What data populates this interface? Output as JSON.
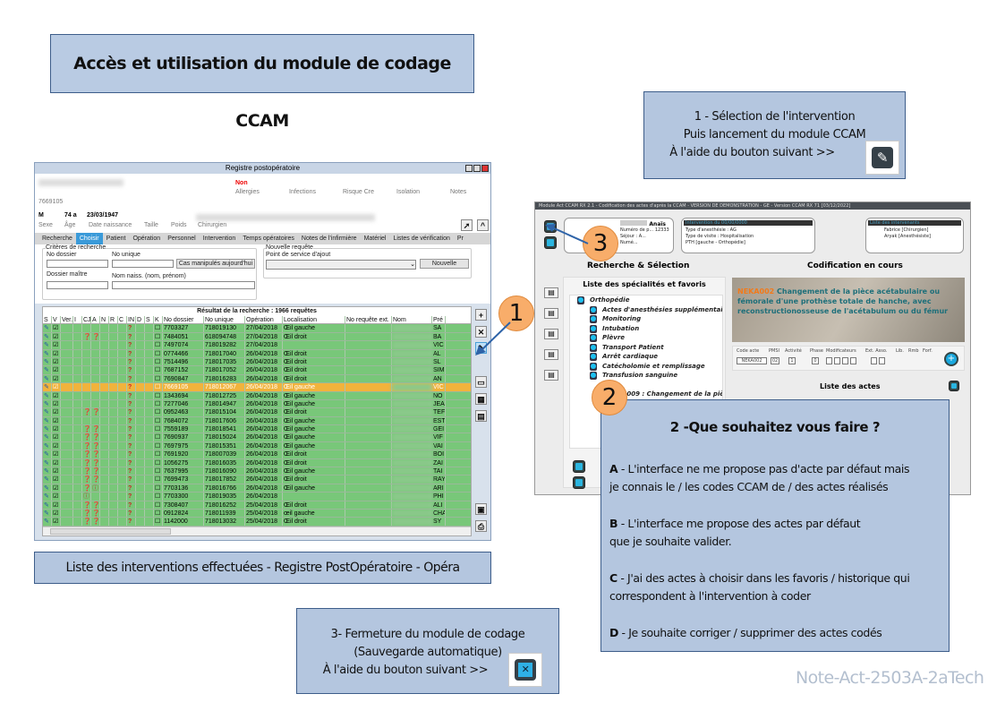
{
  "title": "Accès et utilisation du module de codage CCAM",
  "step1": {
    "lines": [
      "1 - Sélection de l'intervention",
      "Puis lancement du module CCAM",
      "À l'aide du bouton suivant >>"
    ],
    "icon": "edit-icon"
  },
  "step2": {
    "title": "2 -Que souhaitez vous faire ?",
    "options": [
      {
        "key": "A",
        "text": " - L'interface ne me propose pas d'acte par défaut mais",
        "text2": "je connais le / les codes CCAM de / des actes réalisés"
      },
      {
        "key": "B",
        "text": " - L'interface me propose des actes par défaut",
        "text2": "que je souhaite valider."
      },
      {
        "key": "C",
        "text": " - J'ai des actes à choisir dans les favoris / historique qui",
        "text2": "correspondent à l'intervention à coder"
      },
      {
        "key": "D",
        "text": " - Je souhaite corriger / supprimer des actes codés",
        "text2": ""
      }
    ]
  },
  "step3": {
    "lines": [
      "3- Fermeture du module de codage",
      "(Sauvegarde automatique)",
      "À l'aide du bouton suivant >>"
    ],
    "icon": "close-icon"
  },
  "caption": "Liste des interventions effectuées - Registre PostOpératoire - Opéra",
  "watermark": "Note-Act-2503A-2aTech",
  "markers": [
    "1",
    "2",
    "3"
  ],
  "colors": {
    "box": "#b4c6df",
    "marker": "#f8ad6a",
    "row_green": "#78c779",
    "row_selected": "#f1b33c",
    "tab_active": "#3a9ad9"
  },
  "registre": {
    "title": "Registre postopératoire",
    "patient": {
      "allergies_value": "Non",
      "labels": [
        "Allergies",
        "Infections",
        "Risque Cre",
        "Isolation",
        "Notes"
      ],
      "id": "7669105",
      "sexe": "M",
      "age": "74 a",
      "naissance": "23/03/1947",
      "fields": [
        "Sexe",
        "Âge",
        "Date naissance",
        "Taille",
        "Poids",
        "Chirurgien"
      ]
    },
    "tabs": [
      "Recherche",
      "Choisir",
      "Patient",
      "Opération",
      "Personnel",
      "Intervention",
      "Temps opératoires",
      "Notes de l'infirmière",
      "Matériel",
      "Listes de vérification",
      "Pr"
    ],
    "active_tab": "Choisir",
    "criteria": {
      "legend": "Critères de recherche",
      "no_dossier": "No dossier",
      "no_unique": "No unique",
      "cas_btn": "Cas manipulés aujourd'hui",
      "dossier_maitre": "Dossier maître",
      "nom_naiss": "Nom naiss. (nom, prénom)"
    },
    "nouvelle": {
      "legend": "Nouvelle requête",
      "point": "Point de service d'ajout",
      "btn": "Nouvelle"
    },
    "result_caption": "Résultat de la recherche : 1966 requêtes",
    "columns": [
      "S",
      "V",
      "Ver.",
      "I",
      "CJ",
      "A",
      "N",
      "R",
      "C",
      "IN",
      "D",
      "S",
      "K",
      "No dossier",
      "No unique",
      "Opération",
      "Localisation",
      "No requête ext.",
      "Nom",
      "Pré"
    ],
    "rows": [
      {
        "d": "7703327",
        "u": "718019130",
        "op": "27/04/2018",
        "loc": "Œil gauche",
        "p": "SA",
        "cj": ""
      },
      {
        "d": "7484051",
        "u": "618094748",
        "op": "27/04/2018",
        "loc": "Œil droit",
        "p": "BA",
        "cj": "rr"
      },
      {
        "d": "7497074",
        "u": "718019282",
        "op": "27/04/2018",
        "loc": "",
        "p": "VIC",
        "cj": ""
      },
      {
        "d": "0774466",
        "u": "718017040",
        "op": "26/04/2018",
        "loc": "Œil droit",
        "p": "AL",
        "cj": ""
      },
      {
        "d": "7514496",
        "u": "718017035",
        "op": "26/04/2018",
        "loc": "Œil droit",
        "p": "SL",
        "cj": ""
      },
      {
        "d": "7687152",
        "u": "718017052",
        "op": "26/04/2018",
        "loc": "Œil droit",
        "p": "SIM",
        "cj": ""
      },
      {
        "d": "7690847",
        "u": "718016283",
        "op": "26/04/2018",
        "loc": "Œil droit",
        "p": "AN",
        "cj": ""
      },
      {
        "d": "7669105",
        "u": "718012067",
        "op": "26/04/2018",
        "loc": "Œil gauche",
        "p": "VIC",
        "cj": "",
        "sel": true
      },
      {
        "d": "1343694",
        "u": "718012725",
        "op": "26/04/2018",
        "loc": "Œil gauche",
        "p": "NO",
        "cj": ""
      },
      {
        "d": "7277046",
        "u": "718014947",
        "op": "26/04/2018",
        "loc": "Œil gauche",
        "p": "JEA",
        "cj": ""
      },
      {
        "d": "0952463",
        "u": "718015104",
        "op": "26/04/2018",
        "loc": "Œil droit",
        "p": "TEF",
        "cj": "rr"
      },
      {
        "d": "7684072",
        "u": "718017606",
        "op": "26/04/2018",
        "loc": "Œil gauche",
        "p": "EST",
        "cj": ""
      },
      {
        "d": "7559189",
        "u": "718018541",
        "op": "26/04/2018",
        "loc": "Œil gauche",
        "p": "GEI",
        "cj": "rr"
      },
      {
        "d": "7690937",
        "u": "718015024",
        "op": "26/04/2018",
        "loc": "Œil gauche",
        "p": "VIF",
        "cj": "rr"
      },
      {
        "d": "7697975",
        "u": "718015351",
        "op": "26/04/2018",
        "loc": "Œil gauche",
        "p": "VAI",
        "cj": "rr"
      },
      {
        "d": "7691920",
        "u": "718007039",
        "op": "26/04/2018",
        "loc": "Œil droit",
        "p": "BOI",
        "cj": "rr"
      },
      {
        "d": "1056275",
        "u": "718016035",
        "op": "26/04/2018",
        "loc": "Œil droit",
        "p": "ZAI",
        "cj": "rr"
      },
      {
        "d": "7637995",
        "u": "718016090",
        "op": "26/04/2018",
        "loc": "Œil gauche",
        "p": "TAI",
        "cj": "rr"
      },
      {
        "d": "7699473",
        "u": "718017852",
        "op": "26/04/2018",
        "loc": "Œil droit",
        "p": "RAY",
        "cj": "rr"
      },
      {
        "d": "7703136",
        "u": "718016766",
        "op": "26/04/2018",
        "loc": "Œil gauche",
        "p": "ARI",
        "cj": "ri"
      },
      {
        "d": "7703300",
        "u": "718019035",
        "op": "26/04/2018",
        "loc": "",
        "p": "PHI",
        "cj": "i"
      },
      {
        "d": "7308407",
        "u": "718016252",
        "op": "25/04/2018",
        "loc": "Œil droit",
        "p": "ALI",
        "cj": "rr"
      },
      {
        "d": "0912824",
        "u": "718011939",
        "op": "25/04/2018",
        "loc": "œil gauche",
        "p": "CHA",
        "cj": "rr"
      },
      {
        "d": "1142000",
        "u": "718013032",
        "op": "25/04/2018",
        "loc": "Œil droit",
        "p": "SY",
        "cj": "rr"
      }
    ]
  },
  "ccam": {
    "title": "Module Act CCAM RX 2.1 - Codification des actes d'après la CCAM - VERSION DE DEMONSTRATION - GE - Version CCAM RX 71 [03/12/2022]",
    "patient_name": "Anaïs",
    "patient_lines": [
      "Numéro de p... 12333",
      "Séjour : A...",
      "Numé..."
    ],
    "intervention": {
      "header": "Intervention du 00/00/0000",
      "lines": [
        "Type d'anesthésie : AG",
        "Type de visite : Hospitalisation",
        "PTH [gauche - Orthopédie]"
      ]
    },
    "intervenants": {
      "header": "Liste des intervenants",
      "lines": [
        "Fabrice [Chirurgien]",
        "Aryak [Anesthésiste]"
      ]
    },
    "search_heading": "Recherche & Sélection",
    "coding_heading": "Codification en cours",
    "list_heading": "Liste des spécialités et favoris",
    "tree_root": "Orthopédie",
    "tree": [
      "Actes d'anesthésies supplémentaires",
      "Monitoring",
      "Intubation",
      "Plèvre",
      "Transport Patient",
      "Arrêt cardiaque",
      "Catécholomie et remplissage",
      "Transfusion sanguine"
    ],
    "tree_sub": "...A009 : Changement de la pièc",
    "code": "NEKA002",
    "code_desc": "Changement de la pièce acétabulaire ou fémorale d'une prothèse totale de hanche, avec reconstructionosseuse de l'acétabulum ou du fémur",
    "fields": [
      "Code acte",
      "PMSI",
      "Activité",
      "Phase",
      "Modificateurs",
      "Ext. Asso.",
      "Lib.",
      "Rmb",
      "Forf."
    ],
    "values": {
      "code": "NEKA002",
      "pmsi": "02",
      "activite": "1",
      "phase": "0"
    },
    "actes_heading": "Liste des actes"
  }
}
